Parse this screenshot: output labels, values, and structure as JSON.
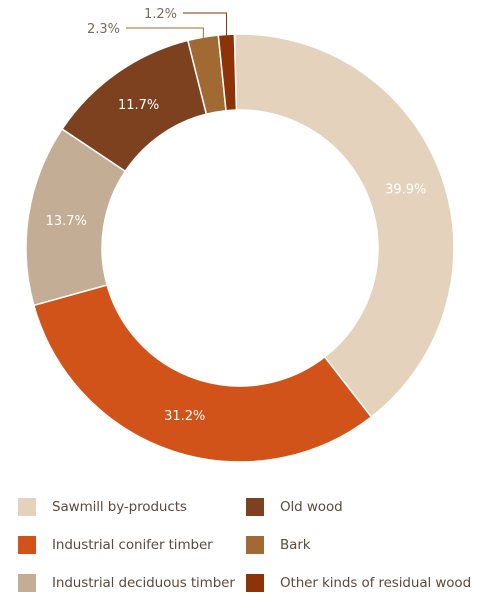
{
  "chart_data": {
    "type": "pie",
    "donut": true,
    "title": "",
    "slices": [
      {
        "label": "Sawmill by-products",
        "value": 39.9,
        "display": "39.9%",
        "color": "#e4d2bd",
        "label_color": "#ffffff"
      },
      {
        "label": "Industrial conifer timber",
        "value": 31.2,
        "display": "31.2%",
        "color": "#d1531a",
        "label_color": "#ffffff"
      },
      {
        "label": "Industrial deciduous timber",
        "value": 13.7,
        "display": "13.7%",
        "color": "#c3ad95",
        "label_color": "#ffffff"
      },
      {
        "label": "Old wood",
        "value": 11.7,
        "display": "11.7%",
        "color": "#7e4120",
        "label_color": "#ffffff"
      },
      {
        "label": "Bark",
        "value": 2.3,
        "display": "2.3%",
        "color": "#a06a32",
        "label_color": "#7a6a5e"
      },
      {
        "label": "Other kinds of residual wood",
        "value": 1.2,
        "display": "1.2%",
        "color": "#8e3208",
        "label_color": "#7a6a5e"
      }
    ],
    "legend_placement": "bottom"
  },
  "legend": {
    "items": [
      {
        "label": "Sawmill by-products",
        "color": "#e4d2bd",
        "name": "legend-sawmill-by-products"
      },
      {
        "label": "Old wood",
        "color": "#7e4120",
        "name": "legend-old-wood"
      },
      {
        "label": "Industrial conifer timber",
        "color": "#d1531a",
        "name": "legend-industrial-conifer-timber"
      },
      {
        "label": "Bark",
        "color": "#a06a32",
        "name": "legend-bark"
      },
      {
        "label": "Industrial deciduous timber",
        "color": "#c3ad95",
        "name": "legend-industrial-deciduous-timber"
      },
      {
        "label": "Other kinds of residual wood",
        "color": "#8e3208",
        "name": "legend-other-residual-wood"
      }
    ]
  }
}
